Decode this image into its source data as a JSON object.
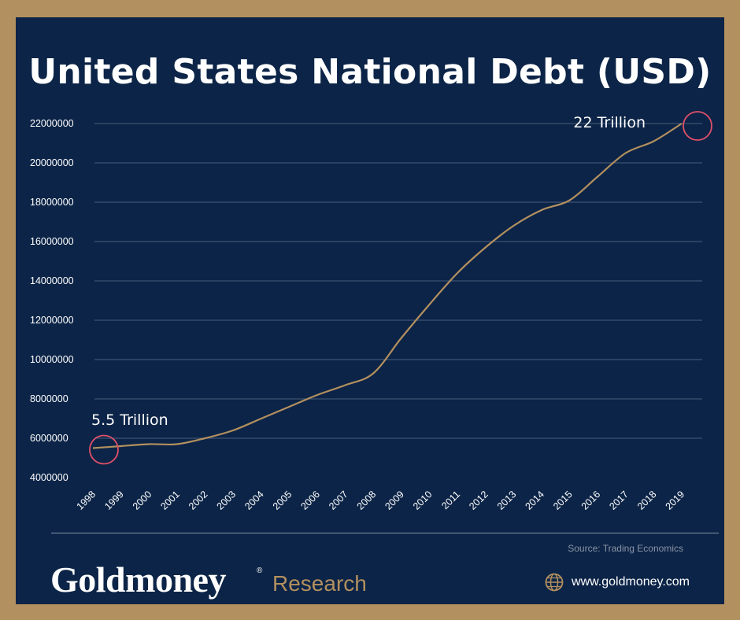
{
  "title": "United States National Debt (USD)",
  "chart_data": {
    "type": "line",
    "title": "United States National Debt (USD)",
    "x": [
      "1998",
      "1999",
      "2000",
      "2001",
      "2002",
      "2003",
      "2004",
      "2005",
      "2006",
      "2007",
      "2008",
      "2009",
      "2010",
      "2011",
      "2012",
      "2013",
      "2014",
      "2015",
      "2016",
      "2017",
      "2018",
      "2019"
    ],
    "series": [
      {
        "values": [
          5500000,
          5600000,
          5700000,
          5700000,
          6000000,
          6400000,
          7000000,
          7600000,
          8200000,
          8700000,
          9300000,
          11100000,
          12800000,
          14400000,
          15700000,
          16800000,
          17600000,
          18100000,
          19300000,
          20500000,
          21100000,
          22000000
        ],
        "color": "#b3905f"
      }
    ],
    "yticks": [
      4000000,
      6000000,
      8000000,
      10000000,
      12000000,
      14000000,
      16000000,
      18000000,
      20000000,
      22000000
    ],
    "ylim": [
      4000000,
      22000000
    ],
    "grid": true,
    "annotations": [
      {
        "label": "5.5 Trillion",
        "x": "1998",
        "y": 5500000
      },
      {
        "label": "22 Trillion",
        "x": "2019",
        "y": 22000000
      }
    ]
  },
  "footer": {
    "source": "Source: Trading Economics",
    "brand": "Goldmoney",
    "brand_mark": "®",
    "brand_sub": "Research",
    "website": "www.goldmoney.com"
  },
  "colors": {
    "background": "#b3905f",
    "panel": "#0c2447",
    "line": "#b3905f",
    "highlight": "#e0506a"
  }
}
